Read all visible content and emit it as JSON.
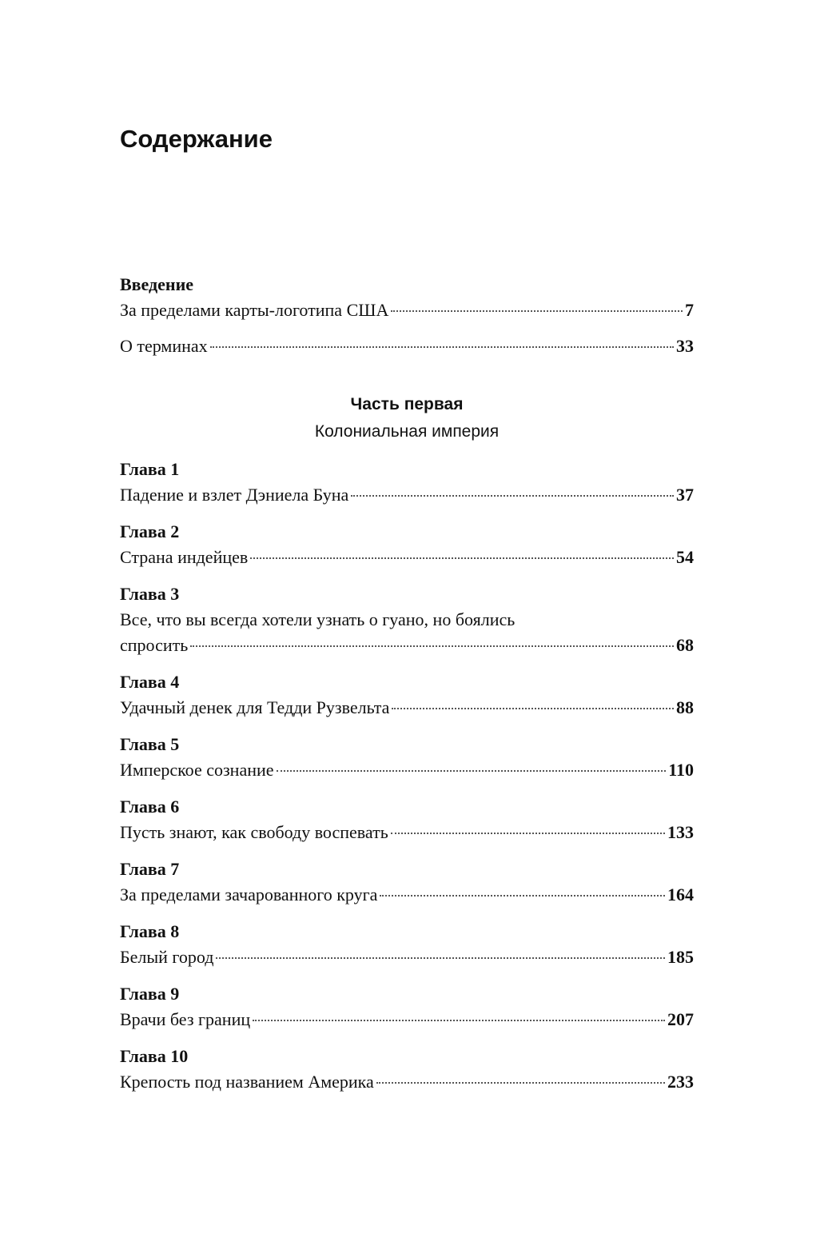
{
  "title": "Содержание",
  "intro": {
    "heading": "Введение",
    "entries": [
      {
        "title": "За пределами карты-логотипа США",
        "page": "7"
      },
      {
        "title": "О терминах",
        "page": "33"
      }
    ]
  },
  "part": {
    "label": "Часть первая",
    "subtitle": "Колониальная империя"
  },
  "chapters": [
    {
      "label": "Глава 1",
      "title_lines": [
        "Падение и взлет Дэниела Буна"
      ],
      "page": "37"
    },
    {
      "label": "Глава 2",
      "title_lines": [
        "Страна индейцев"
      ],
      "page": "54"
    },
    {
      "label": "Глава 3",
      "title_lines": [
        "Все, что вы всегда хотели узнать о гуано, но боялись",
        "спросить"
      ],
      "page": "68"
    },
    {
      "label": "Глава 4",
      "title_lines": [
        "Удачный денек для Тедди Рузвельта"
      ],
      "page": "88"
    },
    {
      "label": "Глава 5",
      "title_lines": [
        "Имперское сознание"
      ],
      "page": "110"
    },
    {
      "label": "Глава 6",
      "title_lines": [
        "Пусть знают, как свободу воспевать"
      ],
      "page": "133"
    },
    {
      "label": "Глава 7",
      "title_lines": [
        "За пределами зачарованного круга"
      ],
      "page": "164"
    },
    {
      "label": "Глава 8",
      "title_lines": [
        "Белый город"
      ],
      "page": "185"
    },
    {
      "label": "Глава 9",
      "title_lines": [
        "Врачи без границ"
      ],
      "page": "207"
    },
    {
      "label": "Глава 10",
      "title_lines": [
        "Крепость под названием Америка"
      ],
      "page": "233"
    }
  ]
}
